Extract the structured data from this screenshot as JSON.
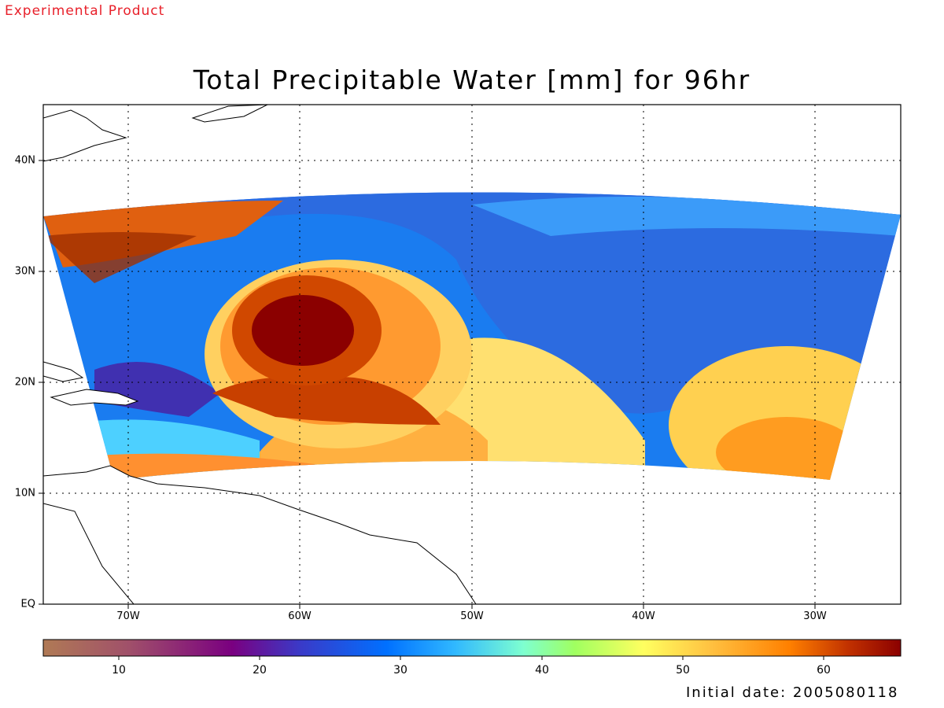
{
  "header": {
    "product_note": "Experimental Product"
  },
  "map": {
    "title": "Total Precipitable Water [mm] for 96hr",
    "variable": "Total Precipitable Water",
    "units": "mm",
    "forecast_hour": "96hr",
    "lon_range": [
      -75,
      -25
    ],
    "lat_range": [
      0,
      45
    ],
    "lon_labels": [
      "70W",
      "60W",
      "50W",
      "40W",
      "30W"
    ],
    "lat_labels": [
      "EQ",
      "10N",
      "20N",
      "30N",
      "40N"
    ],
    "gridlines": "dotted",
    "storm_center_approx": {
      "lon": "~61W",
      "lat": "~24N"
    }
  },
  "colorbar": {
    "min": 5,
    "max": 65,
    "tick_labels": [
      "10",
      "20",
      "30",
      "40",
      "50",
      "60"
    ],
    "colors": [
      "#b07a55",
      "#a0506a",
      "#7a0080",
      "#3a3ac8",
      "#0070ff",
      "#30b8ff",
      "#7effd0",
      "#a0ff60",
      "#ffff60",
      "#ffc040",
      "#ff8000",
      "#c03000",
      "#8b0000"
    ]
  },
  "footer": {
    "initial_date_label": "Initial date: 2005080118"
  }
}
